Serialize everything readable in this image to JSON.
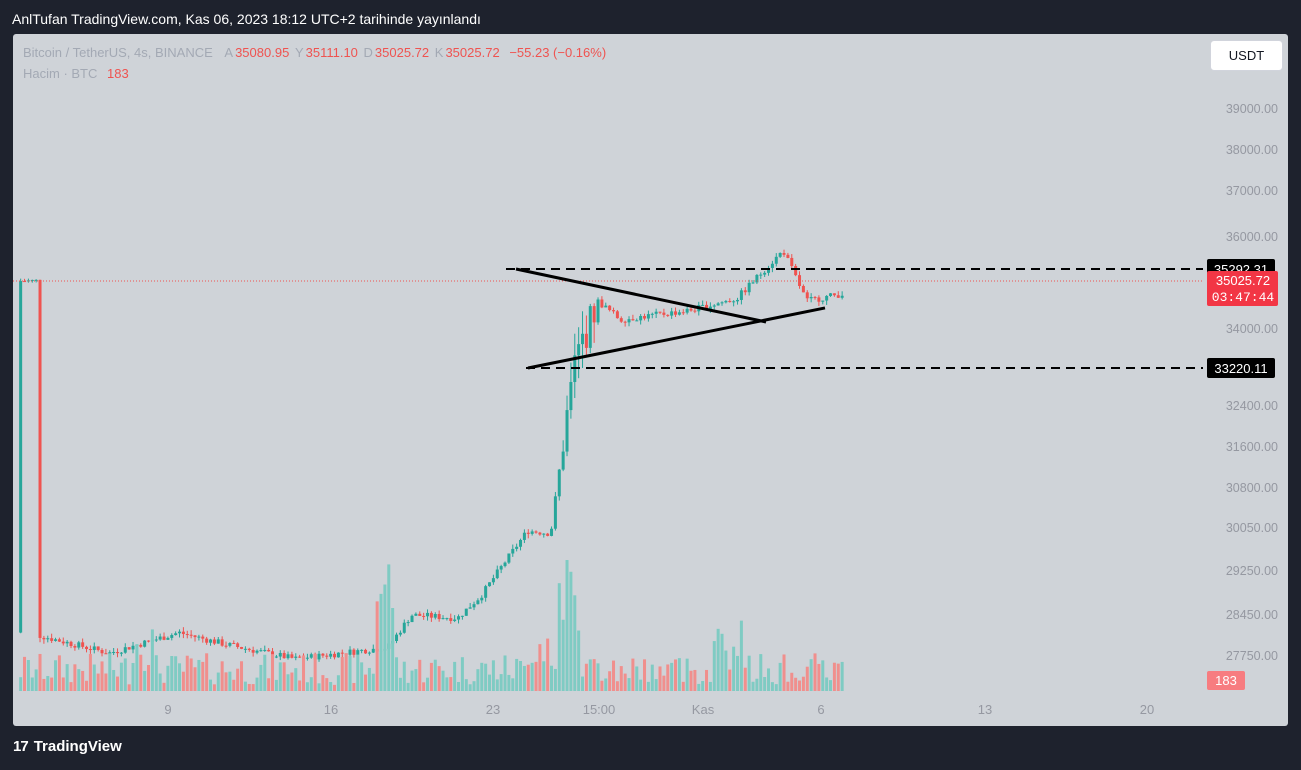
{
  "header": {
    "published": "AnlTufan TradingView.com, Kas 06, 2023 18:12 UTC+2 tarihinde yayınlandı"
  },
  "legend": {
    "symbol": "Bitcoin / TetherUS, 4s, BINANCE",
    "a_label": "A",
    "a_value": "35080.95",
    "y_label": "Y",
    "y_value": "35111.10",
    "d_label": "D",
    "d_value": "35025.72",
    "k_label": "K",
    "k_value": "35025.72",
    "change": "−55.23 (−0.16%)",
    "volume_label": "Hacim · BTC",
    "volume_value": "183"
  },
  "currency_button": "USDT",
  "footer": {
    "logo_mark": "17",
    "logo_text": "TradingView"
  },
  "colors": {
    "up": "#26a69a",
    "down": "#ef5350",
    "up_volume": "#7fcbc3",
    "down_volume": "#f08f8d",
    "background": "#cfd3d8",
    "frame": "#1e222d"
  },
  "chart_data": {
    "type": "candlestick",
    "y_tick_labels": [
      "39000.00",
      "38000.00",
      "37000.00",
      "36000.00",
      "34000.00",
      "32400.00",
      "31600.00",
      "30800.00",
      "30050.00",
      "29250.00",
      "28450.00",
      "27750.00"
    ],
    "x_tick_labels": [
      "9",
      "16",
      "23",
      "15:00",
      "Kas",
      "6",
      "13",
      "20"
    ],
    "price_badges": [
      {
        "value": "35292.31",
        "style": "black"
      },
      {
        "value": "35025.72",
        "style": "red",
        "sub": "03:47:44"
      },
      {
        "value": "33220.11",
        "style": "black"
      }
    ],
    "volume_badge": "183",
    "last_price": 35025.72,
    "resistance": 35292.31,
    "support": 33220.11,
    "annotations": [
      {
        "type": "hline-dashed",
        "value": 35292.31
      },
      {
        "type": "hline-dashed",
        "value": 33220.11
      },
      {
        "type": "trendline",
        "from": [
          35292,
          "Oct 24"
        ],
        "to": [
          34150,
          "Nov 02"
        ]
      },
      {
        "type": "trendline",
        "from": [
          33220,
          "Oct 24"
        ],
        "to": [
          34450,
          "Nov 05"
        ]
      }
    ],
    "candles_summary": [
      [
        1,
        28100
      ],
      [
        4,
        27800
      ],
      [
        7,
        28150
      ],
      [
        9,
        27950
      ],
      [
        12,
        27700
      ],
      [
        16,
        27900
      ],
      [
        17,
        28450
      ],
      [
        19,
        28400
      ],
      [
        20,
        28800
      ],
      [
        21,
        29400
      ],
      [
        22,
        30000
      ],
      [
        23,
        29950
      ],
      [
        24,
        33200
      ],
      [
        25,
        34600
      ],
      [
        26,
        34200
      ],
      [
        29,
        34400
      ],
      [
        31,
        34650
      ],
      [
        33,
        35700
      ],
      [
        34,
        34600
      ],
      [
        36,
        34800
      ],
      [
        37,
        35025.72
      ]
    ]
  }
}
